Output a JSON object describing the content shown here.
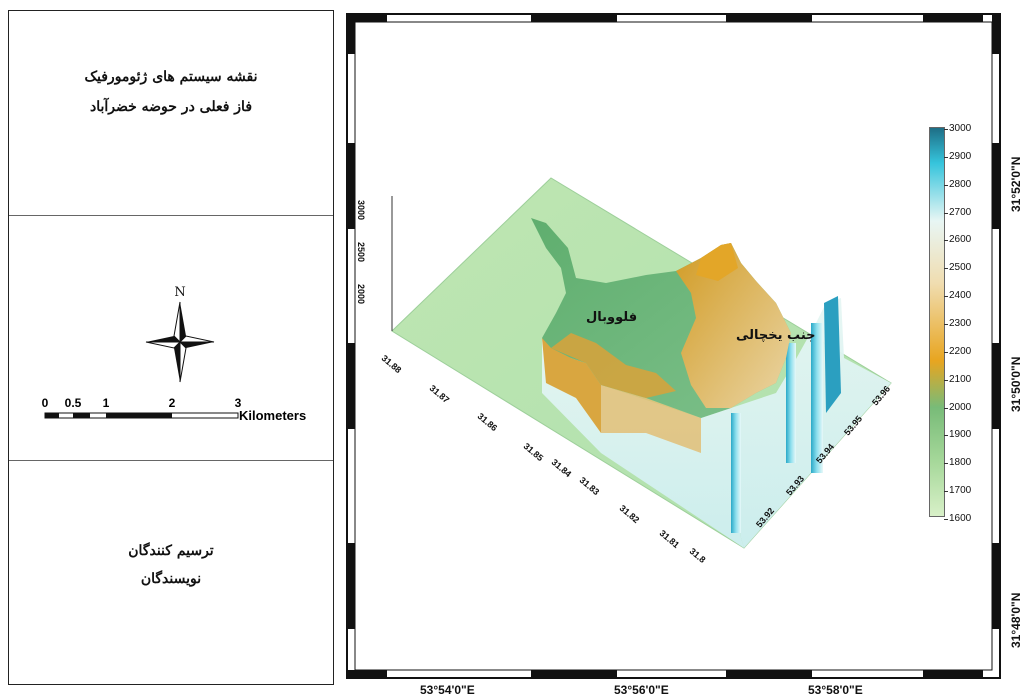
{
  "title": {
    "line1": "نقشه سیستم های ژئومورفیک",
    "line2": "فاز فعلی در حوضه خضرآباد"
  },
  "north_arrow": {
    "label": "N"
  },
  "scale_bar": {
    "ticks": [
      "0",
      "0.5",
      "1",
      "2",
      "3"
    ],
    "unit": "Kilometers"
  },
  "credits": {
    "line1": "ترسیم کنندگان",
    "line2": "نویسندگان"
  },
  "map": {
    "longitude_labels": [
      "53°54'0\"E",
      "53°56'0\"E",
      "53°58'0\"E"
    ],
    "latitude_labels": [
      "31°52'0\"N",
      "31°50'0\"N",
      "31°48'0\"N"
    ],
    "place_labels": [
      "فلووبال",
      "جنب یخچالی"
    ],
    "elevation_ticks": [
      "3000",
      "2500",
      "2000"
    ],
    "lat_axis_ticks": [
      "31.88",
      "31.87",
      "31.86",
      "31.85",
      "31.84",
      "31.83",
      "31.82",
      "31.81",
      "31.8"
    ],
    "lon_axis_ticks": [
      "53.92",
      "53.93",
      "53.94",
      "53.95",
      "53.96"
    ]
  },
  "colorbar": {
    "ticks": [
      "3000",
      "2900",
      "2800",
      "2700",
      "2600",
      "2500",
      "2400",
      "2300",
      "2200",
      "2100",
      "2000",
      "1900",
      "1800",
      "1700",
      "1600"
    ],
    "colors": {
      "high": "#1e6e86",
      "cyan": "#35c4dc",
      "pale": "#e8f6f4",
      "tan": "#f0ddb0",
      "orange": "#e8a520",
      "green_mid": "#78bb78",
      "green_low": "#a6d89a",
      "low": "#d8f0c8"
    }
  }
}
